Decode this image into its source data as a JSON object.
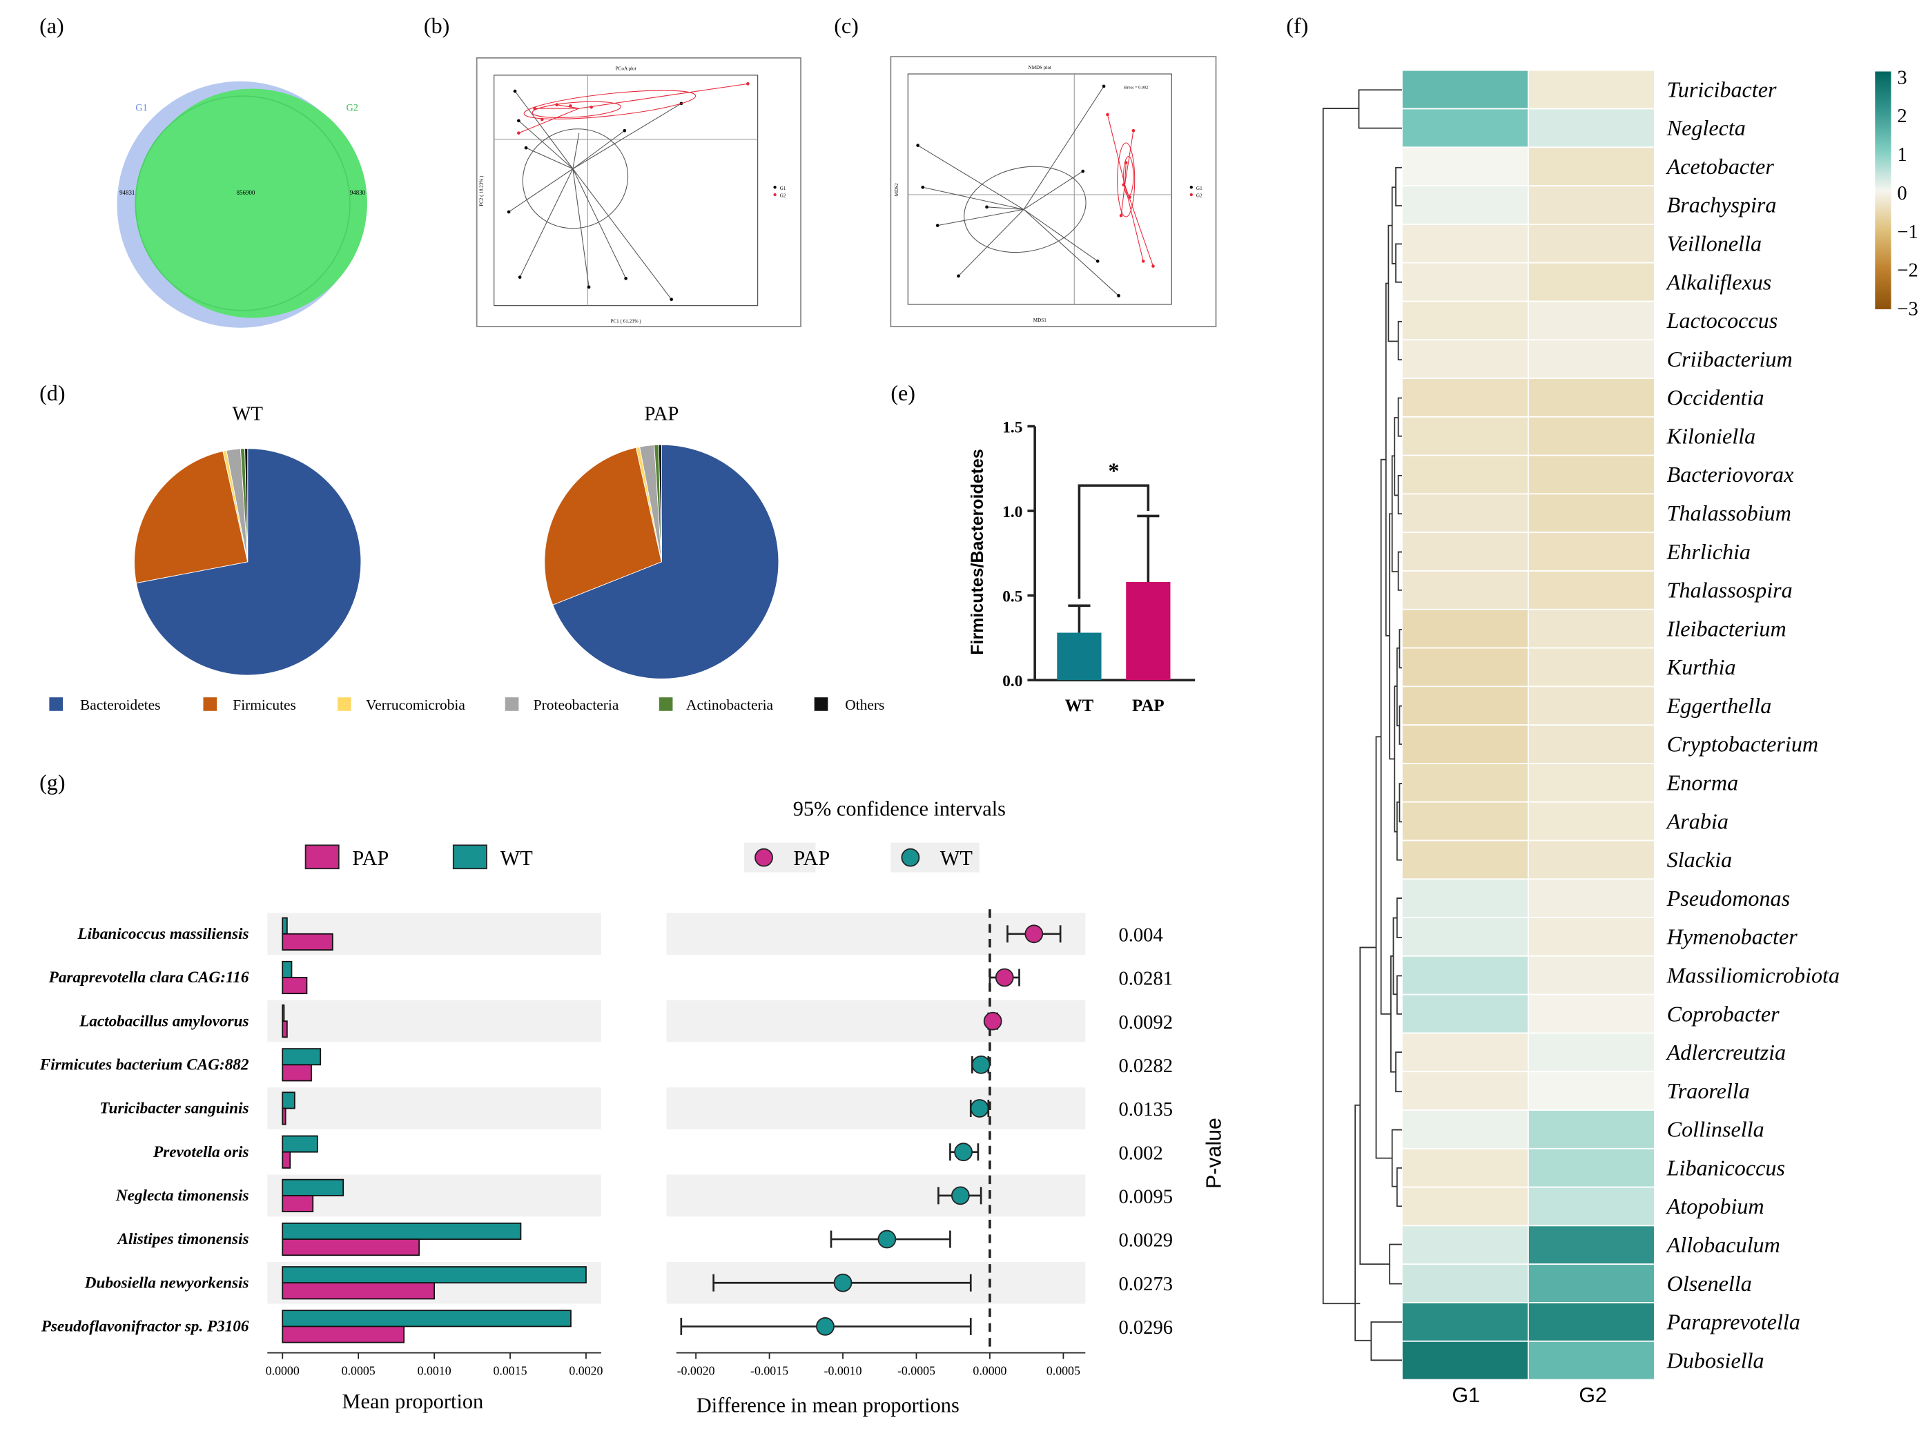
{
  "panel_labels": {
    "a": "(a)",
    "b": "(b)",
    "c": "(c)",
    "d": "(d)",
    "e": "(e)",
    "f": "(f)",
    "g": "(g)"
  },
  "chart_data": [
    {
      "type": "venn",
      "id": "a",
      "sets": [
        "G1",
        "G2"
      ],
      "only_g1": "94831",
      "intersection": "856900",
      "only_g2": "94830",
      "colors": {
        "G1": "#b6c8f0",
        "G2": "#5be073"
      }
    },
    {
      "type": "scatter",
      "id": "b",
      "title": "PCoA plot",
      "xlabel": "PC1 ( 61.23% )",
      "ylabel": "PC2 ( 18.23% )",
      "legend": [
        "G1",
        "G2"
      ],
      "colors": {
        "G1": "#000000",
        "G2": "#e8283a"
      }
    },
    {
      "type": "scatter",
      "id": "c",
      "title": "NMDS plot",
      "xlabel": "MDS1",
      "ylabel": "MDS2",
      "stress": "Stress = 0.002",
      "legend": [
        "G1",
        "G2"
      ],
      "colors": {
        "G1": "#000000",
        "G2": "#e8283a"
      }
    },
    {
      "type": "pie",
      "id": "d",
      "charts": [
        {
          "title": "WT",
          "values": [
            72.0,
            24.5,
            0.5,
            2.0,
            0.6,
            0.4
          ]
        },
        {
          "title": "PAP",
          "values": [
            69.0,
            27.5,
            0.5,
            2.0,
            0.6,
            0.4
          ]
        }
      ],
      "labels": [
        "Bacteroidetes",
        "Firmicutes",
        "Verrucomicrobia",
        "Proteobacteria",
        "Actinobacteria",
        "Others"
      ],
      "colors": [
        "#2f5597",
        "#c55a11",
        "#ffd966",
        "#a6a6a6",
        "#548235",
        "#111111"
      ]
    },
    {
      "type": "bar",
      "id": "e",
      "categories": [
        "WT",
        "PAP"
      ],
      "values": [
        0.28,
        0.58
      ],
      "errors": [
        0.16,
        0.39
      ],
      "ylabel": "Firmicutes/Bacteroidetes",
      "ylim": [
        0,
        1.5
      ],
      "yticks": [
        "0.0",
        "0.5",
        "1.0",
        "1.5"
      ],
      "significance": "*",
      "colors": [
        "#0e7c8b",
        "#cc0c6a"
      ]
    },
    {
      "type": "heatmap",
      "id": "f",
      "columns": [
        "G1",
        "G2"
      ],
      "rows": [
        "Turicibacter",
        "Neglecta",
        "Acetobacter",
        "Brachyspira",
        "Veillonella",
        "Alkaliflexus",
        "Lactococcus",
        "Criibacterium",
        "Occidentia",
        "Kiloniella",
        "Bacteriovorax",
        "Thalassobium",
        "Ehrlichia",
        "Thalassospira",
        "Ileibacterium",
        "Kurthia",
        "Eggerthella",
        "Cryptobacterium",
        "Enorma",
        "Arabia",
        "Slackia",
        "Pseudomonas",
        "Hymenobacter",
        "Massiliomicrobiota",
        "Coprobacter",
        "Adlercreutzia",
        "Traorella",
        "Collinsella",
        "Libanicoccus",
        "Atopobium",
        "Allobaculum",
        "Olsenella",
        "Paraprevotella",
        "Dubosiella"
      ],
      "values": [
        [
          1.6,
          -0.4
        ],
        [
          1.3,
          0.3
        ],
        [
          0.0,
          -0.6
        ],
        [
          0.1,
          -0.5
        ],
        [
          -0.3,
          -0.5
        ],
        [
          -0.3,
          -0.6
        ],
        [
          -0.4,
          -0.2
        ],
        [
          -0.3,
          -0.2
        ],
        [
          -0.7,
          -0.8
        ],
        [
          -0.6,
          -0.8
        ],
        [
          -0.6,
          -0.8
        ],
        [
          -0.5,
          -0.8
        ],
        [
          -0.5,
          -0.7
        ],
        [
          -0.5,
          -0.7
        ],
        [
          -0.9,
          -0.5
        ],
        [
          -0.9,
          -0.5
        ],
        [
          -0.9,
          -0.5
        ],
        [
          -0.9,
          -0.5
        ],
        [
          -0.8,
          -0.4
        ],
        [
          -0.8,
          -0.4
        ],
        [
          -0.8,
          -0.5
        ],
        [
          0.2,
          -0.2
        ],
        [
          0.2,
          -0.3
        ],
        [
          0.5,
          -0.2
        ],
        [
          0.5,
          -0.1
        ],
        [
          -0.3,
          0.1
        ],
        [
          -0.3,
          0.0
        ],
        [
          0.1,
          0.7
        ],
        [
          -0.4,
          0.7
        ],
        [
          -0.4,
          0.5
        ],
        [
          0.3,
          2.5
        ],
        [
          0.4,
          1.8
        ],
        [
          2.6,
          2.7
        ],
        [
          3.0,
          1.6
        ]
      ],
      "colorbar_ticks": [
        "3",
        "2",
        "1",
        "0",
        "−1",
        "−2",
        "−3"
      ],
      "vmin": -3,
      "vmax": 3
    },
    {
      "type": "bar",
      "id": "g",
      "orientation": "horizontal",
      "categories": [
        "Libanicoccus massiliensis",
        "Paraprevotella clara CAG:116",
        "Lactobacillus amylovorus",
        "Firmicutes bacterium CAG:882",
        "Turicibacter sanguinis",
        "Prevotella oris",
        "Neglecta timonensis",
        "Alistipes timonensis",
        "Dubosiella newyorkensis",
        "Pseudoflavonifractor sp. P3106"
      ],
      "series": [
        {
          "name": "PAP",
          "values": [
            0.00033,
            0.00016,
            3e-05,
            0.00019,
            2e-05,
            5e-05,
            0.0002,
            0.0009,
            0.001,
            0.0008
          ]
        },
        {
          "name": "WT",
          "values": [
            3e-05,
            6e-05,
            1e-05,
            0.00025,
            8e-05,
            0.00023,
            0.0004,
            0.00157,
            0.002,
            0.0019
          ]
        }
      ],
      "xlabel": "Mean proportion",
      "xlim": [
        -0.0001,
        0.0021
      ],
      "xticks": [
        "0.0000",
        "0.0005",
        "0.0010",
        "0.0015",
        "0.0020"
      ],
      "colors": {
        "PAP": "#cc2c8a",
        "WT": "#179290"
      }
    },
    {
      "type": "scatter",
      "id": "g-ci",
      "title": "95% confidence intervals",
      "categories": [
        "Libanicoccus massiliensis",
        "Paraprevotella clara CAG:116",
        "Lactobacillus amylovorus",
        "Firmicutes bacterium CAG:882",
        "Turicibacter sanguinis",
        "Prevotella oris",
        "Neglecta timonensis",
        "Alistipes timonensis",
        "Dubosiella newyorkensis",
        "Pseudoflavonifractor sp. P3106"
      ],
      "diff": [
        0.0003,
        0.0001,
        2e-05,
        -6e-05,
        -7e-05,
        -0.00018,
        -0.0002,
        -0.0007,
        -0.001,
        -0.00112
      ],
      "ci_low": [
        0.00012,
        0.0,
        -1e-05,
        -0.00012,
        -0.00013,
        -0.00027,
        -0.00035,
        -0.00108,
        -0.00188,
        -0.0021
      ],
      "ci_high": [
        0.00048,
        0.0002,
        5e-05,
        -1e-05,
        -1e-05,
        -8e-05,
        -6e-05,
        -0.00027,
        -0.00013,
        -0.00013
      ],
      "group": [
        "PAP",
        "PAP",
        "PAP",
        "WT",
        "WT",
        "WT",
        "WT",
        "WT",
        "WT",
        "WT"
      ],
      "p_values": [
        "0.004",
        "0.0281",
        "0.0092",
        "0.0282",
        "0.0135",
        "0.002",
        "0.0095",
        "0.0029",
        "0.0273",
        "0.0296"
      ],
      "xlabel": "Difference in mean proportions",
      "p_label": "P-value",
      "xlim": [
        -0.0022,
        0.00065
      ],
      "xticks": [
        "-0.0020",
        "-0.0015",
        "-0.0010",
        "-0.0005",
        "0.0000",
        "0.0005"
      ],
      "legend": [
        "PAP",
        "WT"
      ],
      "colors": {
        "PAP": "#cc2c8a",
        "WT": "#179290"
      }
    }
  ]
}
